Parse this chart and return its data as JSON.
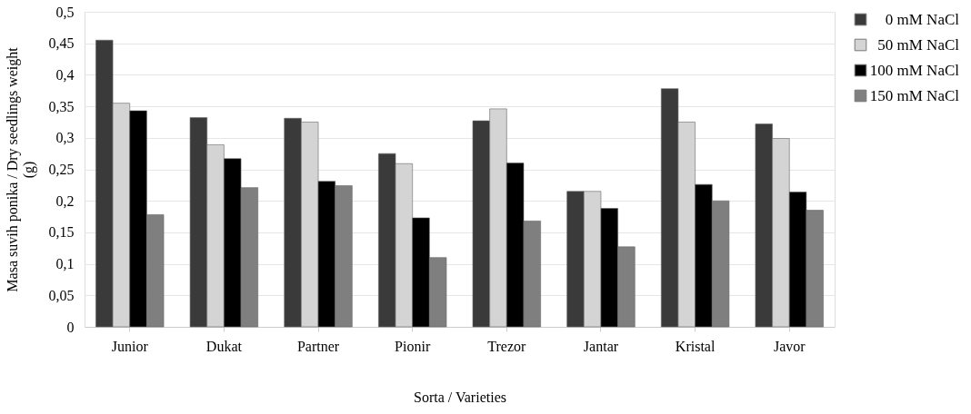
{
  "chart_data": {
    "type": "bar",
    "xlabel": "Sorta / Varieties",
    "ylabel": "Masa suvih ponika / Dry seedlings weight (g)",
    "categories": [
      "Junior",
      "Dukat",
      "Partner",
      "Pionir",
      "Trezor",
      "Jantar",
      "Kristal",
      "Javor"
    ],
    "series": [
      {
        "name": "0 mM NaCl",
        "color": "#3a3a3a",
        "values": [
          0.455,
          0.332,
          0.331,
          0.275,
          0.327,
          0.215,
          0.378,
          0.322
        ]
      },
      {
        "name": "50 mM NaCl",
        "color": "#d4d4d4",
        "values": [
          0.355,
          0.289,
          0.325,
          0.259,
          0.346,
          0.215,
          0.325,
          0.299
        ]
      },
      {
        "name": "100 mM NaCl",
        "color": "#000000",
        "values": [
          0.343,
          0.267,
          0.231,
          0.173,
          0.26,
          0.188,
          0.226,
          0.214
        ]
      },
      {
        "name": "150 mM NaCl",
        "color": "#7f7f7f",
        "values": [
          0.178,
          0.221,
          0.224,
          0.11,
          0.168,
          0.127,
          0.2,
          0.185
        ]
      }
    ],
    "ylim": [
      0,
      0.5
    ],
    "yticks": [
      {
        "value": 0,
        "label": "0"
      },
      {
        "value": 0.05,
        "label": "0,05"
      },
      {
        "value": 0.1,
        "label": "0,1"
      },
      {
        "value": 0.15,
        "label": "0,15"
      },
      {
        "value": 0.2,
        "label": "0,2"
      },
      {
        "value": 0.25,
        "label": "0,25"
      },
      {
        "value": 0.3,
        "label": "0,3"
      },
      {
        "value": 0.35,
        "label": "0,35"
      },
      {
        "value": 0.4,
        "label": "0,4"
      },
      {
        "value": 0.45,
        "label": "0,45"
      },
      {
        "value": 0.5,
        "label": "0,5"
      }
    ],
    "grid": "y",
    "legend": "right"
  }
}
